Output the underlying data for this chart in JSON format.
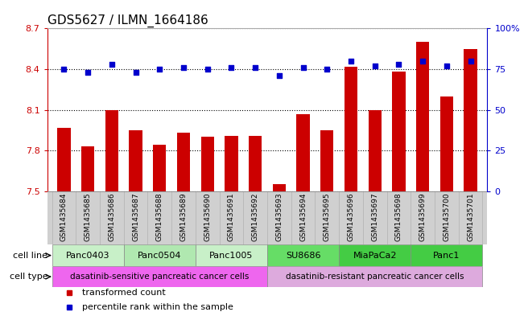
{
  "title": "GDS5627 / ILMN_1664186",
  "samples": [
    "GSM1435684",
    "GSM1435685",
    "GSM1435686",
    "GSM1435687",
    "GSM1435688",
    "GSM1435689",
    "GSM1435690",
    "GSM1435691",
    "GSM1435692",
    "GSM1435693",
    "GSM1435694",
    "GSM1435695",
    "GSM1435696",
    "GSM1435697",
    "GSM1435698",
    "GSM1435699",
    "GSM1435700",
    "GSM1435701"
  ],
  "bar_values": [
    7.97,
    7.83,
    8.1,
    7.95,
    7.84,
    7.93,
    7.9,
    7.91,
    7.91,
    7.55,
    8.07,
    7.95,
    8.42,
    8.1,
    8.38,
    8.6,
    8.2,
    8.55
  ],
  "percentile_values": [
    75,
    73,
    78,
    73,
    75,
    76,
    75,
    76,
    76,
    71,
    76,
    75,
    80,
    77,
    78,
    80,
    77,
    80
  ],
  "ylim_left": [
    7.5,
    8.7
  ],
  "ylim_right": [
    0,
    100
  ],
  "yticks_left": [
    7.5,
    7.8,
    8.1,
    8.4,
    8.7
  ],
  "yticks_right": [
    0,
    25,
    50,
    75,
    100
  ],
  "bar_color": "#CC0000",
  "dot_color": "#0000CC",
  "cell_lines": [
    {
      "label": "Panc0403",
      "start": 0,
      "end": 3,
      "color": "#c8f0c8"
    },
    {
      "label": "Panc0504",
      "start": 3,
      "end": 6,
      "color": "#b0e8b0"
    },
    {
      "label": "Panc1005",
      "start": 6,
      "end": 9,
      "color": "#c8f0c8"
    },
    {
      "label": "SU8686",
      "start": 9,
      "end": 12,
      "color": "#66dd66"
    },
    {
      "label": "MiaPaCa2",
      "start": 12,
      "end": 15,
      "color": "#44cc44"
    },
    {
      "label": "Panc1",
      "start": 15,
      "end": 18,
      "color": "#44cc44"
    }
  ],
  "cell_types": [
    {
      "label": "dasatinib-sensitive pancreatic cancer cells",
      "start": 0,
      "end": 9,
      "color": "#ee66ee"
    },
    {
      "label": "dasatinib-resistant pancreatic cancer cells",
      "start": 9,
      "end": 18,
      "color": "#ddaadd"
    }
  ],
  "legend_items": [
    {
      "label": "transformed count",
      "color": "#CC0000"
    },
    {
      "label": "percentile rank within the sample",
      "color": "#0000CC"
    }
  ],
  "axis_color_left": "#CC0000",
  "axis_color_right": "#0000CC",
  "bar_width": 0.55,
  "sample_fontsize": 6.5,
  "ytick_fontsize": 8,
  "title_fontsize": 11,
  "cell_line_label_fontsize": 8,
  "cell_type_label_fontsize": 7.5,
  "row_label_fontsize": 8,
  "legend_fontsize": 8,
  "xticklabel_bg": "#d0d0d0"
}
